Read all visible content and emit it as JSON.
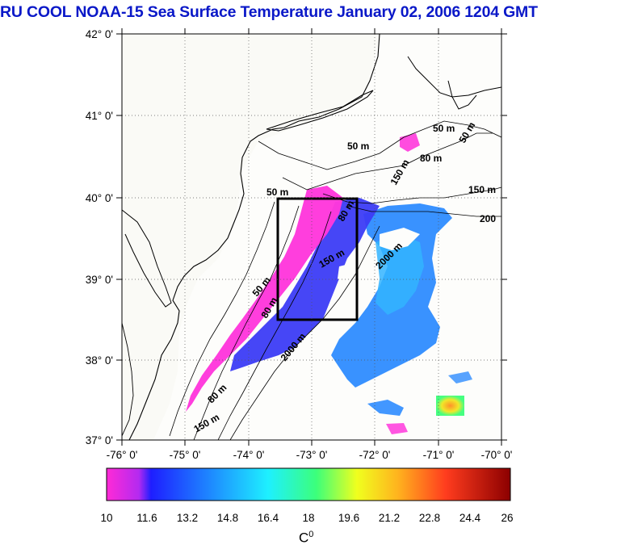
{
  "title": "RU COOL  NOAA-15 Sea Surface Temperature January 02, 2006 1204 GMT",
  "latitude_labels": [
    "42° 0'",
    "41° 0'",
    "40° 0'",
    "39° 0'",
    "38° 0'",
    "37° 0'"
  ],
  "longitude_labels": [
    "-76° 0'",
    "-75° 0'",
    "-74° 0'",
    "-73° 0'",
    "-72° 0'",
    "-71° 0'",
    "-70° 0'"
  ],
  "contour_labels": [
    {
      "id": "c1",
      "text": "50 m"
    },
    {
      "id": "c2",
      "text": "50 m"
    },
    {
      "id": "c3",
      "text": "80 m"
    },
    {
      "id": "c4",
      "text": "50 m"
    },
    {
      "id": "c5",
      "text": "150 m"
    },
    {
      "id": "c6",
      "text": "200"
    },
    {
      "id": "c7",
      "text": "150 m"
    },
    {
      "id": "c8",
      "text": "2000 m"
    },
    {
      "id": "c9",
      "text": "50 m"
    },
    {
      "id": "c10",
      "text": "80 m"
    },
    {
      "id": "c11",
      "text": "80 m"
    },
    {
      "id": "c12",
      "text": "150 m"
    },
    {
      "id": "c13",
      "text": "50 m"
    },
    {
      "id": "c14",
      "text": "80 m"
    },
    {
      "id": "c15",
      "text": "150 m"
    },
    {
      "id": "c16",
      "text": "2000 m"
    }
  ],
  "colorbar": {
    "ticks": [
      "10",
      "11.6",
      "13.2",
      "14.8",
      "16.4",
      "18",
      "19.6",
      "21.2",
      "22.8",
      "24.4",
      "26"
    ],
    "unit": "C",
    "unit_sup": "0",
    "min": 10,
    "max": 26,
    "colors": [
      "#ff2ad6",
      "#1e1eff",
      "#1ea8ff",
      "#1ef0ff",
      "#3cff7a",
      "#f0ff1e",
      "#ffb41e",
      "#ff3c1e",
      "#8c0000"
    ]
  },
  "colors": {
    "title": "#0a18c8",
    "cold_sst": "#ff3cdc",
    "shelf_sst": "#3c3cff",
    "slope_sst": "#2aa0ff",
    "box": "#000000"
  }
}
